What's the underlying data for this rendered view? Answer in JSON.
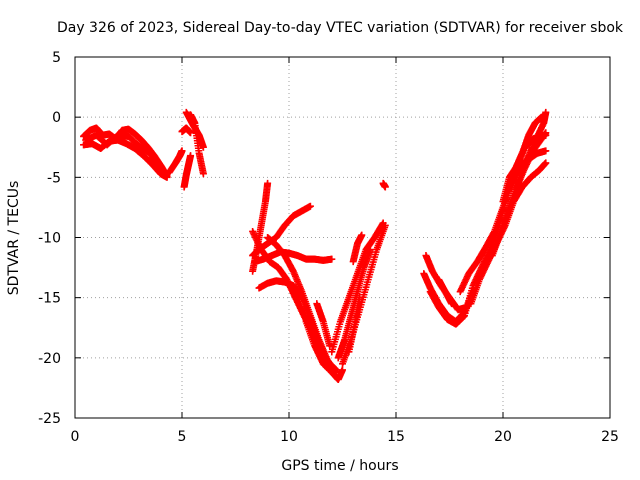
{
  "chart_data": {
    "type": "scatter",
    "title": "Day 326 of 2023, Sidereal Day-to-day VTEC variation (SDTVAR) for receiver sbok",
    "xlabel": "GPS time / hours",
    "ylabel": "SDTVAR / TECUs",
    "xlim": [
      0,
      25
    ],
    "ylim": [
      -25,
      5
    ],
    "x_ticks": [
      0,
      5,
      10,
      15,
      20,
      25
    ],
    "y_ticks": [
      -25,
      -20,
      -15,
      -10,
      -5,
      0,
      5
    ],
    "grid": true,
    "marker": "+",
    "color": "#ff0000",
    "traces": [
      [
        [
          0.4,
          -1.6
        ],
        [
          0.7,
          -1.1
        ],
        [
          1.0,
          -0.9
        ],
        [
          1.3,
          -1.5
        ],
        [
          1.6,
          -1.4
        ],
        [
          1.9,
          -1.8
        ],
        [
          2.2,
          -1.1
        ],
        [
          2.5,
          -1.0
        ],
        [
          2.8,
          -1.4
        ],
        [
          3.1,
          -1.9
        ],
        [
          3.4,
          -2.5
        ],
        [
          3.7,
          -3.2
        ],
        [
          4.0,
          -4.0
        ],
        [
          4.2,
          -4.6
        ]
      ],
      [
        [
          0.4,
          -2.3
        ],
        [
          0.8,
          -2.2
        ],
        [
          1.2,
          -2.6
        ],
        [
          1.6,
          -2.0
        ],
        [
          2.0,
          -1.9
        ],
        [
          2.4,
          -2.2
        ],
        [
          2.8,
          -2.6
        ],
        [
          3.2,
          -3.2
        ],
        [
          3.6,
          -3.9
        ],
        [
          4.0,
          -4.7
        ],
        [
          4.3,
          -5.0
        ]
      ],
      [
        [
          0.5,
          -1.9
        ],
        [
          1.0,
          -1.5
        ],
        [
          1.5,
          -2.3
        ],
        [
          2.0,
          -1.5
        ],
        [
          2.5,
          -1.6
        ],
        [
          3.0,
          -2.4
        ],
        [
          3.5,
          -3.0
        ],
        [
          4.0,
          -4.3
        ],
        [
          4.3,
          -4.9
        ]
      ],
      [
        [
          4.4,
          -4.6
        ],
        [
          4.7,
          -3.8
        ],
        [
          4.9,
          -3.2
        ],
        [
          5.0,
          -2.8
        ]
      ],
      [
        [
          5.1,
          -5.8
        ],
        [
          5.2,
          -4.8
        ],
        [
          5.3,
          -4.0
        ],
        [
          5.4,
          -3.2
        ]
      ],
      [
        [
          5.2,
          0.4
        ],
        [
          5.5,
          -0.6
        ],
        [
          5.8,
          -1.5
        ],
        [
          6.0,
          -2.5
        ]
      ],
      [
        [
          5.4,
          0.2
        ],
        [
          5.6,
          -0.5
        ],
        [
          5.8,
          -3.0
        ],
        [
          6.0,
          -4.7
        ]
      ],
      [
        [
          5.0,
          -1.2
        ],
        [
          5.2,
          -0.9
        ],
        [
          5.4,
          -1.3
        ]
      ],
      [
        [
          8.3,
          -12.8
        ],
        [
          8.5,
          -11.0
        ],
        [
          8.7,
          -9.0
        ],
        [
          8.9,
          -7.0
        ],
        [
          9.0,
          -5.5
        ]
      ],
      [
        [
          8.3,
          -11.5
        ],
        [
          8.6,
          -11.0
        ],
        [
          9.0,
          -10.5
        ],
        [
          9.4,
          -10.0
        ],
        [
          9.8,
          -9.0
        ],
        [
          10.2,
          -8.2
        ],
        [
          10.6,
          -7.8
        ],
        [
          11.0,
          -7.4
        ]
      ],
      [
        [
          8.4,
          -12.0
        ],
        [
          8.8,
          -11.8
        ],
        [
          9.2,
          -11.5
        ],
        [
          9.6,
          -11.2
        ],
        [
          10.0,
          -11.3
        ],
        [
          10.4,
          -11.5
        ],
        [
          10.8,
          -11.8
        ],
        [
          11.2,
          -11.8
        ],
        [
          11.6,
          -11.9
        ],
        [
          12.0,
          -11.8
        ]
      ],
      [
        [
          8.3,
          -9.5
        ],
        [
          8.7,
          -11.0
        ],
        [
          9.1,
          -12.0
        ],
        [
          9.5,
          -12.5
        ],
        [
          9.9,
          -13.5
        ],
        [
          10.3,
          -15.0
        ],
        [
          10.7,
          -16.5
        ],
        [
          11.1,
          -18.0
        ],
        [
          11.5,
          -19.5
        ],
        [
          11.9,
          -20.8
        ],
        [
          12.2,
          -21.2
        ]
      ],
      [
        [
          9.0,
          -10.0
        ],
        [
          9.4,
          -10.6
        ],
        [
          9.8,
          -11.5
        ],
        [
          10.2,
          -12.8
        ],
        [
          10.6,
          -14.5
        ],
        [
          11.0,
          -16.5
        ],
        [
          11.4,
          -18.5
        ],
        [
          11.8,
          -20.2
        ],
        [
          12.1,
          -21.0
        ]
      ],
      [
        [
          8.6,
          -14.2
        ],
        [
          9.0,
          -13.8
        ],
        [
          9.4,
          -13.6
        ],
        [
          9.8,
          -13.7
        ],
        [
          10.2,
          -14.0
        ],
        [
          10.6,
          -15.0
        ],
        [
          11.0,
          -16.8
        ],
        [
          11.4,
          -18.8
        ],
        [
          11.8,
          -20.3
        ],
        [
          12.2,
          -21.0
        ]
      ],
      [
        [
          10.8,
          -17.0
        ],
        [
          11.2,
          -19.0
        ],
        [
          11.6,
          -20.5
        ],
        [
          12.0,
          -21.2
        ],
        [
          12.3,
          -21.8
        ],
        [
          12.5,
          -21.0
        ]
      ],
      [
        [
          11.3,
          -15.5
        ],
        [
          11.6,
          -17.0
        ],
        [
          11.9,
          -19.0
        ]
      ],
      [
        [
          12.3,
          -20.0
        ],
        [
          12.6,
          -18.5
        ],
        [
          12.9,
          -16.5
        ],
        [
          13.2,
          -14.5
        ],
        [
          13.5,
          -12.5
        ],
        [
          13.8,
          -11.0
        ]
      ],
      [
        [
          12.0,
          -19.5
        ],
        [
          12.4,
          -17.0
        ],
        [
          12.8,
          -15.0
        ],
        [
          13.2,
          -13.0
        ],
        [
          13.6,
          -11.0
        ],
        [
          14.0,
          -10.0
        ],
        [
          14.4,
          -8.8
        ]
      ],
      [
        [
          12.5,
          -20.5
        ],
        [
          12.9,
          -18.5
        ],
        [
          13.3,
          -16.0
        ],
        [
          13.7,
          -13.5
        ],
        [
          14.1,
          -11.0
        ],
        [
          14.5,
          -9.0
        ]
      ],
      [
        [
          12.8,
          -19.5
        ],
        [
          13.1,
          -17.0
        ],
        [
          13.3,
          -15.0
        ]
      ],
      [
        [
          13.0,
          -12.0
        ],
        [
          13.2,
          -10.5
        ],
        [
          13.4,
          -9.8
        ]
      ],
      [
        [
          14.4,
          -5.5
        ],
        [
          14.5,
          -5.8
        ]
      ],
      [
        [
          16.3,
          -13.0
        ],
        [
          16.6,
          -14.2
        ],
        [
          17.0,
          -15.5
        ],
        [
          17.4,
          -16.5
        ],
        [
          17.8,
          -17.0
        ],
        [
          18.2,
          -16.2
        ],
        [
          18.6,
          -14.5
        ]
      ],
      [
        [
          16.4,
          -11.5
        ],
        [
          16.7,
          -12.8
        ],
        [
          17.1,
          -14.0
        ],
        [
          17.5,
          -15.0
        ],
        [
          17.9,
          -16.0
        ],
        [
          18.3,
          -15.8
        ]
      ],
      [
        [
          17.0,
          -13.5
        ],
        [
          17.3,
          -14.5
        ],
        [
          17.6,
          -15.5
        ]
      ],
      [
        [
          16.6,
          -14.5
        ],
        [
          17.0,
          -15.8
        ],
        [
          17.4,
          -16.8
        ],
        [
          17.8,
          -17.2
        ],
        [
          18.2,
          -16.5
        ]
      ],
      [
        [
          18.0,
          -14.5
        ],
        [
          18.4,
          -13.0
        ],
        [
          18.8,
          -12.0
        ],
        [
          19.2,
          -10.8
        ],
        [
          19.6,
          -9.5
        ],
        [
          20.0,
          -7.5
        ],
        [
          20.4,
          -5.5
        ],
        [
          20.8,
          -4.0
        ],
        [
          21.2,
          -3.5
        ],
        [
          21.6,
          -3.0
        ],
        [
          22.0,
          -2.8
        ]
      ],
      [
        [
          18.2,
          -16.5
        ],
        [
          18.6,
          -14.0
        ],
        [
          19.0,
          -12.5
        ],
        [
          19.4,
          -11.0
        ],
        [
          19.8,
          -9.0
        ],
        [
          20.2,
          -6.5
        ],
        [
          20.6,
          -4.2
        ],
        [
          21.0,
          -2.6
        ],
        [
          21.4,
          -1.8
        ],
        [
          21.8,
          -1.6
        ],
        [
          22.0,
          -1.5
        ]
      ],
      [
        [
          18.5,
          -15.5
        ],
        [
          18.9,
          -13.5
        ],
        [
          19.3,
          -12.0
        ],
        [
          19.7,
          -10.5
        ],
        [
          20.1,
          -9.0
        ],
        [
          20.5,
          -7.0
        ],
        [
          20.9,
          -5.8
        ],
        [
          21.3,
          -5.0
        ],
        [
          21.7,
          -4.4
        ],
        [
          22.0,
          -3.8
        ]
      ],
      [
        [
          19.5,
          -11.5
        ],
        [
          19.9,
          -9.5
        ],
        [
          20.3,
          -7.5
        ],
        [
          20.7,
          -5.5
        ],
        [
          21.1,
          -3.6
        ],
        [
          21.5,
          -2.0
        ],
        [
          21.9,
          -0.5
        ],
        [
          22.0,
          0.4
        ]
      ],
      [
        [
          19.8,
          -10.0
        ],
        [
          20.2,
          -8.0
        ],
        [
          20.6,
          -6.0
        ],
        [
          21.0,
          -4.3
        ],
        [
          21.4,
          -2.8
        ],
        [
          21.8,
          -1.8
        ],
        [
          22.0,
          -1.3
        ]
      ],
      [
        [
          20.0,
          -7.0
        ],
        [
          20.3,
          -5.0
        ],
        [
          20.6,
          -4.2
        ],
        [
          20.9,
          -3.0
        ],
        [
          21.2,
          -1.5
        ],
        [
          21.5,
          -0.5
        ],
        [
          21.8,
          0.0
        ]
      ]
    ]
  }
}
